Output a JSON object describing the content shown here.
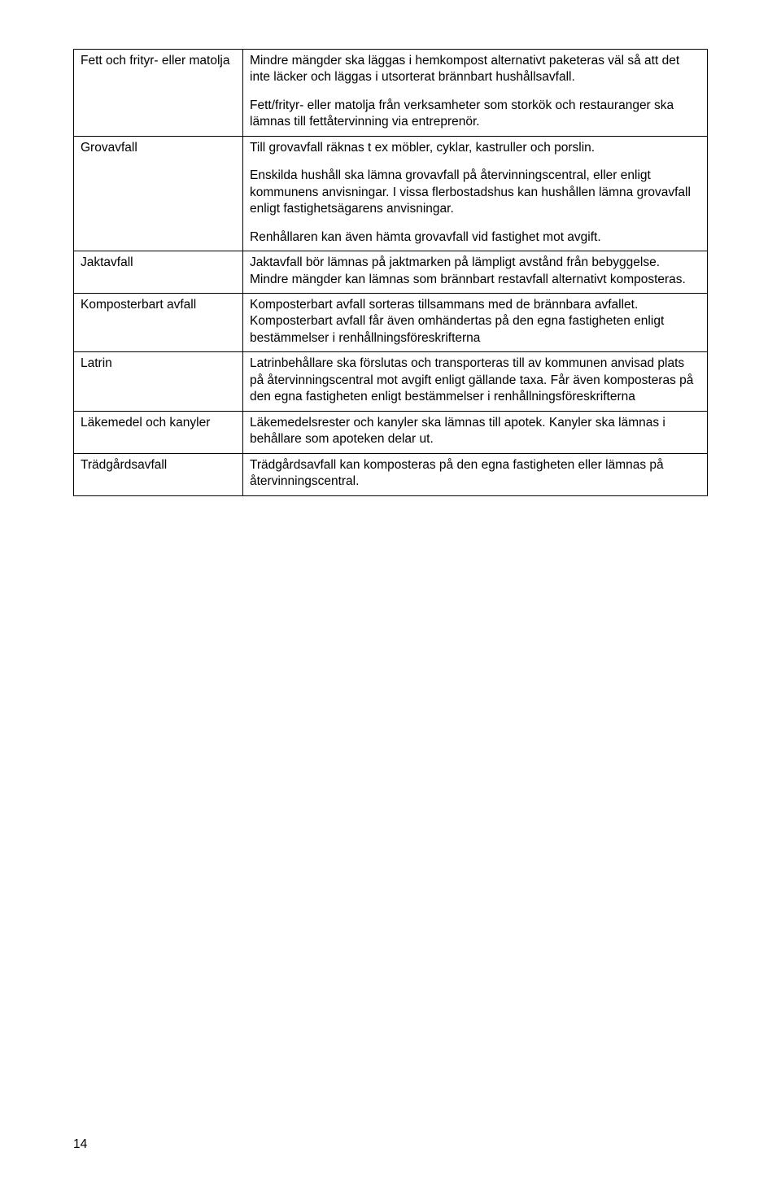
{
  "rows": [
    {
      "label": "Fett och frityr- eller matolja",
      "paras": [
        "Mindre mängder ska läggas i hemkompost alternativt paketeras väl så att det inte läcker och läggas i utsorterat brännbart hushållsavfall.",
        "Fett/frityr- eller matolja från verksamheter som storkök och restauranger ska lämnas till fettåtervinning via entreprenör."
      ]
    },
    {
      "label": "Grovavfall",
      "paras": [
        "Till grovavfall räknas t ex möbler, cyklar, kastruller och porslin.",
        "Enskilda hushåll ska lämna grovavfall på återvinningscentral, eller enligt kommunens anvisningar. I vissa flerbostadshus kan hushållen lämna grovavfall enligt fastighetsägarens anvisningar.",
        "Renhållaren kan även hämta grovavfall vid fastighet mot avgift."
      ]
    },
    {
      "label": "Jaktavfall",
      "paras": [
        "Jaktavfall bör lämnas på jaktmarken på lämpligt avstånd från bebyggelse. Mindre mängder kan lämnas som brännbart restavfall alternativt komposteras."
      ]
    },
    {
      "label": "Komposterbart avfall",
      "paras": [
        "Komposterbart avfall sorteras tillsammans med de brännbara avfallet. Komposterbart avfall får även omhändertas på den egna fastigheten enligt bestämmelser i renhållningsföreskrifterna"
      ]
    },
    {
      "label": "Latrin",
      "paras": [
        "Latrinbehållare ska förslutas och transporteras till av kommunen anvisad plats på återvinningscentral mot avgift enligt gällande taxa. Får även komposteras på den egna fastigheten enligt bestämmelser i renhållningsföreskrifterna"
      ]
    },
    {
      "label": "Läkemedel och kanyler",
      "paras": [
        "Läkemedelsrester och kanyler ska lämnas till apotek. Kanyler ska lämnas i behållare som apoteken delar ut."
      ]
    },
    {
      "label": "Trädgårdsavfall",
      "paras": [
        "Trädgårdsavfall kan komposteras på den egna fastigheten eller lämnas på återvinningscentral."
      ]
    }
  ],
  "pageNumber": "14"
}
